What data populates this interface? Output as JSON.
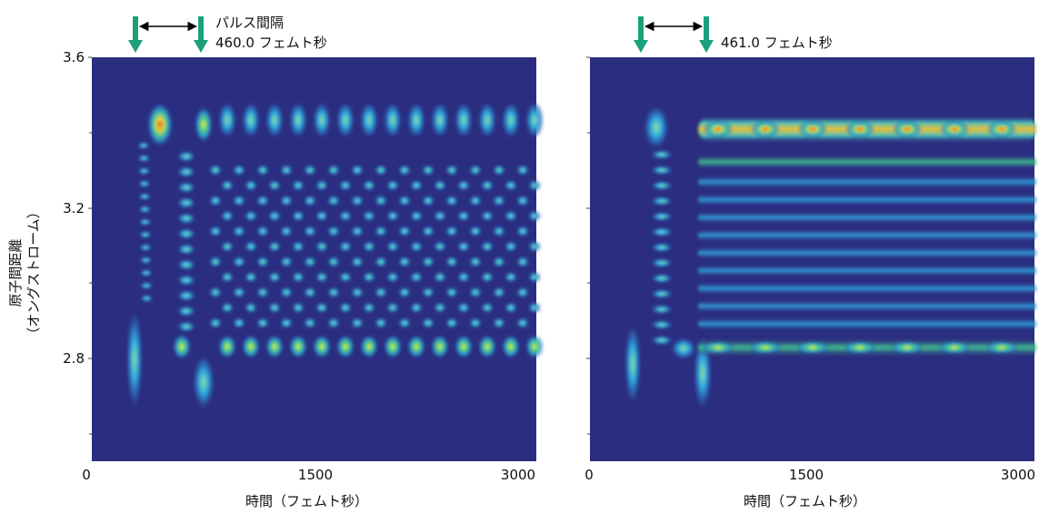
{
  "y_axis": {
    "label_lines": [
      "原子間距離",
      "（オングストローム）"
    ],
    "ticks": [
      "3.6",
      "3.2",
      "2.8"
    ]
  },
  "panels": [
    {
      "annotation_lines": [
        "パルス間隔",
        "460.0 フェムト秒"
      ],
      "x_ticks": [
        "0",
        "1500",
        "3000"
      ],
      "x_label": "時間（フェムト秒）"
    },
    {
      "annotation_lines": [
        "461.0 フェムト秒"
      ],
      "x_ticks": [
        "0",
        "1500",
        "3000"
      ],
      "x_label": "時間（フェムト秒）"
    }
  ]
}
